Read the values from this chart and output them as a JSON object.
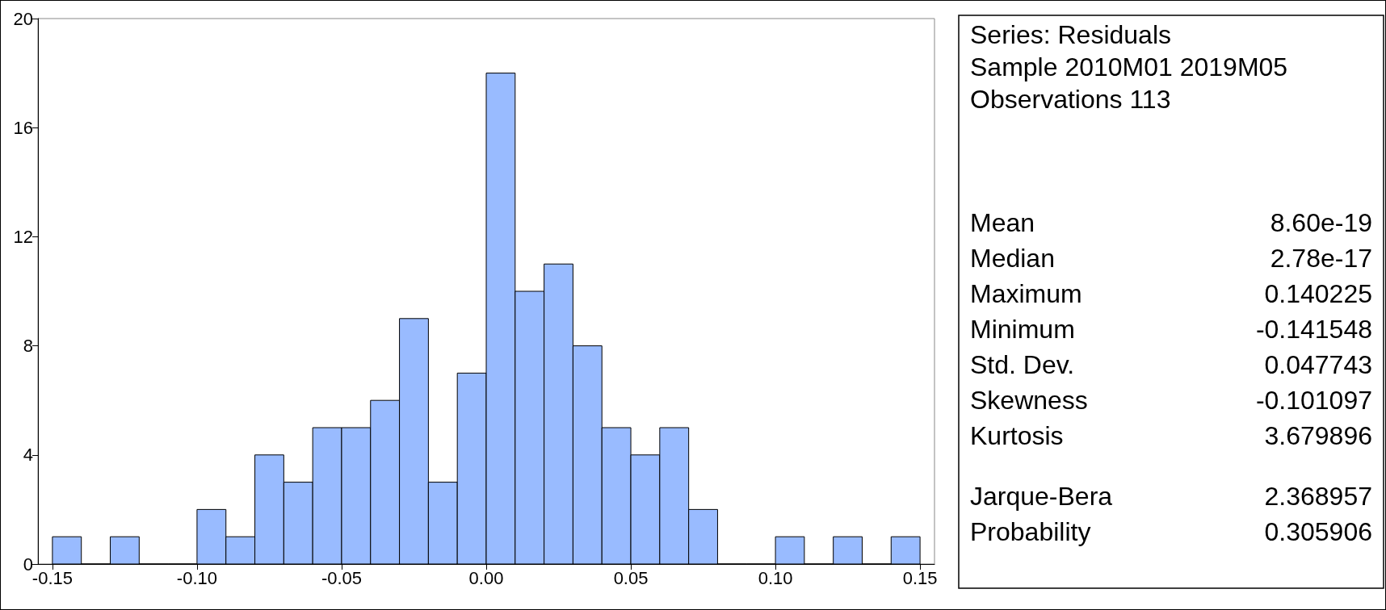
{
  "chart_data": {
    "type": "histogram",
    "bins": [
      -0.15,
      -0.14,
      -0.13,
      -0.12,
      -0.11,
      -0.1,
      -0.09,
      -0.08,
      -0.07,
      -0.06,
      -0.05,
      -0.04,
      -0.03,
      -0.02,
      -0.01,
      0.0,
      0.01,
      0.02,
      0.03,
      0.04,
      0.05,
      0.06,
      0.07,
      0.08,
      0.09,
      0.1,
      0.11,
      0.12,
      0.13,
      0.14,
      0.15
    ],
    "values": [
      1,
      0,
      1,
      0,
      0,
      2,
      1,
      4,
      3,
      5,
      5,
      6,
      9,
      3,
      7,
      18,
      10,
      11,
      8,
      5,
      4,
      5,
      2,
      0,
      0,
      1,
      0,
      1,
      0,
      1
    ],
    "color": "#99bbff",
    "xlim": [
      -0.155,
      0.155
    ],
    "xticks": [
      {
        "value": -0.15,
        "label": "-0.15"
      },
      {
        "value": -0.1,
        "label": "-0.10"
      },
      {
        "value": -0.05,
        "label": "-0.05"
      },
      {
        "value": 0,
        "label": "0.00"
      },
      {
        "value": 0.05,
        "label": "0.05"
      },
      {
        "value": 0.1,
        "label": "0.10"
      },
      {
        "value": 0.15,
        "label": "0.15"
      }
    ],
    "ylim": [
      0,
      20
    ],
    "yticks": [
      0,
      4,
      8,
      12,
      16,
      20
    ],
    "grid": false,
    "annotations": [
      "Series: Residuals",
      "Sample 2010M01 2019M05",
      "Observations 113",
      "Mean",
      "8.60e-19",
      "Median",
      "2.78e-17",
      "Maximum",
      "0.140225",
      "Minimum",
      "-0.141548",
      "Std. Dev.",
      "0.047743",
      "Skewness",
      "-0.101097",
      "Kurtosis",
      "3.679896",
      "Jarque-Bera",
      "2.368957",
      "Probability",
      "0.305906"
    ]
  }
}
